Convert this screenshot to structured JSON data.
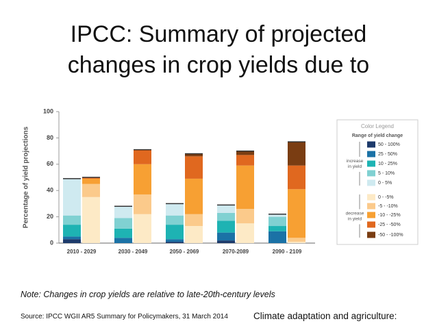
{
  "title_lines": [
    "IPCC: Summary of projected",
    "changes in crop yields due to"
  ],
  "chart_data": {
    "type": "stacked_bar",
    "y_label": "Percentage of yield projections",
    "categories": [
      "2010 - 2029",
      "2030 - 2049",
      "2050 - 2069",
      "2070-2089",
      "2090 - 2109"
    ],
    "ylim": [
      0,
      100
    ],
    "yticks": [
      0,
      20,
      40,
      60,
      80,
      100
    ],
    "legend": {
      "title": "Color Legend",
      "subtitle": "Range of yield change",
      "groups": [
        "increase in yield",
        "decrease in yield"
      ]
    },
    "series": [
      {
        "name": "50 - 100%",
        "stack": 0,
        "color": "#1d3a6b",
        "values": [
          3,
          0,
          1,
          2,
          0
        ]
      },
      {
        "name": "25 - 50%",
        "stack": 0,
        "color": "#1b72a6",
        "values": [
          2,
          4,
          2,
          6,
          9
        ]
      },
      {
        "name": "10 - 25%",
        "stack": 0,
        "color": "#1eb3b3",
        "values": [
          9,
          7,
          11,
          9,
          4
        ]
      },
      {
        "name": "5 - 10%",
        "stack": 0,
        "color": "#80d1d2",
        "values": [
          7,
          8,
          7,
          6,
          7
        ]
      },
      {
        "name": "0 - 5%",
        "stack": 0,
        "color": "#cfeaf0",
        "values": [
          28,
          9,
          9,
          6,
          2
        ]
      },
      {
        "name": "0 - -5%",
        "stack": 1,
        "color": "#fdeac6",
        "values": [
          35,
          22,
          13,
          15,
          1
        ]
      },
      {
        "name": "-5 - -10%",
        "stack": 1,
        "color": "#fbca8b",
        "values": [
          10,
          15,
          9,
          11,
          3
        ]
      },
      {
        "name": "-10 - -25%",
        "stack": 1,
        "color": "#f7a033",
        "values": [
          4,
          23,
          27,
          33,
          37
        ]
      },
      {
        "name": "-25 - -50%",
        "stack": 1,
        "color": "#e0681f",
        "values": [
          1,
          11,
          17,
          8,
          18
        ]
      },
      {
        "name": "-50 - -100%",
        "stack": 1,
        "color": "#7a3d12",
        "values": [
          0,
          0,
          2,
          3,
          18
        ]
      }
    ]
  },
  "note": "Note: Changes in crop yields are relative to late-20th-century levels",
  "source": "Source: IPCC WGII AR5 Summary for Policymakers, 31 March 2014",
  "footer": "Climate adaptation and agriculture:"
}
